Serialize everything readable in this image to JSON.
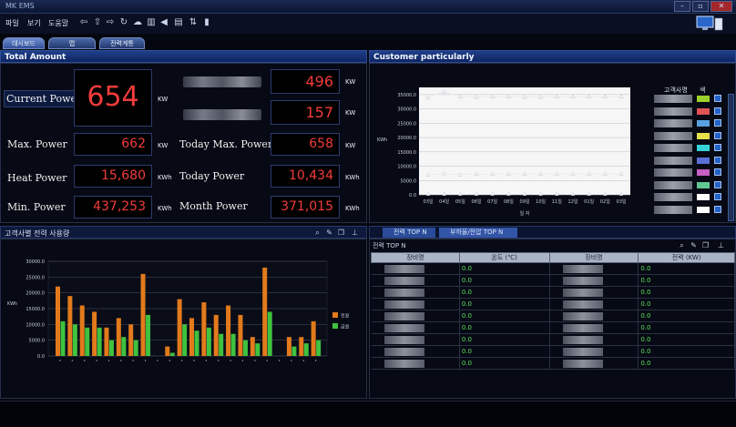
{
  "window": {
    "title": "MK EMS"
  },
  "menu": {
    "items": [
      "파일",
      "보기",
      "도움말"
    ]
  },
  "tabs": [
    "대시보드",
    "맵",
    "전력계통"
  ],
  "total_amount": {
    "header": "Total Amount",
    "current_power": {
      "label": "Current Power",
      "value": "654",
      "unit": "KW"
    },
    "right_top": [
      {
        "value": "496",
        "unit": "KW"
      },
      {
        "value": "157",
        "unit": "KW"
      }
    ],
    "rows": [
      {
        "label": "Max. Power",
        "value": "662",
        "unit": "KW",
        "label2": "Today Max. Power",
        "value2": "658",
        "unit2": "KW"
      },
      {
        "label": "Heat Power",
        "value": "15,680",
        "unit": "KWh",
        "label2": "Today  Power",
        "value2": "10,434",
        "unit2": "KWh"
      },
      {
        "label": "Min. Power",
        "value": "437,253",
        "unit": "KWh",
        "label2": "Month  Power",
        "value2": "371,015",
        "unit2": "KWh"
      }
    ]
  },
  "customer": {
    "header": "Customer particularly",
    "legend_title": "고객사명",
    "legend_col": "색",
    "legend_colors": [
      "#9bd12a",
      "#e05454",
      "#5aa0e0",
      "#e8e04a",
      "#36d3d6",
      "#5b6fd8",
      "#c65ec4",
      "#60c690",
      "#ffffff",
      "#ffffff"
    ]
  },
  "bottom_left": {
    "title": "고객사별 전력 사용량"
  },
  "bottom_right": {
    "tabs": [
      "전력 TOP N",
      "부하율/전압 TOP N"
    ],
    "subtitle": "전력 TOP N",
    "columns": [
      "장비명",
      "온도 (℃)",
      "장비명",
      "전력 (KW)"
    ],
    "rows": [
      [
        "0.0",
        "0.0"
      ],
      [
        "0.0",
        "0.0"
      ],
      [
        "0.0",
        "0.0"
      ],
      [
        "0.0",
        "0.0"
      ],
      [
        "0.0",
        "0.0"
      ],
      [
        "0.0",
        "0.0"
      ],
      [
        "0.0",
        "0.0"
      ],
      [
        "0.0",
        "0.0"
      ],
      [
        "0.0",
        "0.0"
      ]
    ]
  },
  "chart_data": [
    {
      "type": "line",
      "ylabel": "KWh",
      "xlabel": "일 자",
      "x": [
        "03일",
        "04일",
        "05일",
        "06일",
        "07일",
        "08일",
        "09일",
        "10일",
        "11일",
        "12일",
        "01일",
        "02일",
        "03일"
      ],
      "ylim": [
        0,
        37500
      ],
      "yticks": [
        "0.0",
        "5000.0",
        "10000.0",
        "15000.0",
        "20000.0",
        "25000.0",
        "30000.0",
        "35000.0"
      ],
      "series": [
        {
          "values": [
            34000,
            36000,
            34200,
            34100,
            34200,
            34200,
            34100,
            34100,
            34200,
            34200,
            34200,
            34200,
            34200
          ]
        },
        {
          "values": [
            7000,
            7400,
            7000,
            7200,
            7300,
            7300,
            7300,
            7300,
            7300,
            7300,
            7300,
            7300,
            7300
          ]
        },
        {
          "values": [
            200,
            200,
            200,
            200,
            200,
            200,
            200,
            200,
            200,
            200,
            200,
            200,
            200
          ]
        }
      ]
    },
    {
      "type": "bar",
      "ylabel": "KWh",
      "ylim": [
        0,
        30000
      ],
      "yticks": [
        "0.0",
        "5000.0",
        "10000.0",
        "15000.0",
        "20000.0",
        "25000.0",
        "30000.0"
      ],
      "series": [
        {
          "name": "전월",
          "color": "#e27a1c",
          "values": [
            22000,
            19000,
            16000,
            14000,
            9000,
            12000,
            10000,
            26000,
            0,
            3000,
            18000,
            12000,
            17000,
            13000,
            16000,
            13000,
            6000,
            28000,
            0,
            6000,
            6000,
            11000
          ]
        },
        {
          "name": "금월",
          "color": "#3fc23f",
          "values": [
            11000,
            10000,
            9000,
            9000,
            5000,
            6000,
            5000,
            13000,
            0,
            1000,
            10000,
            8000,
            9000,
            7000,
            7000,
            5000,
            4000,
            14000,
            0,
            3000,
            4000,
            5000
          ]
        }
      ]
    }
  ]
}
